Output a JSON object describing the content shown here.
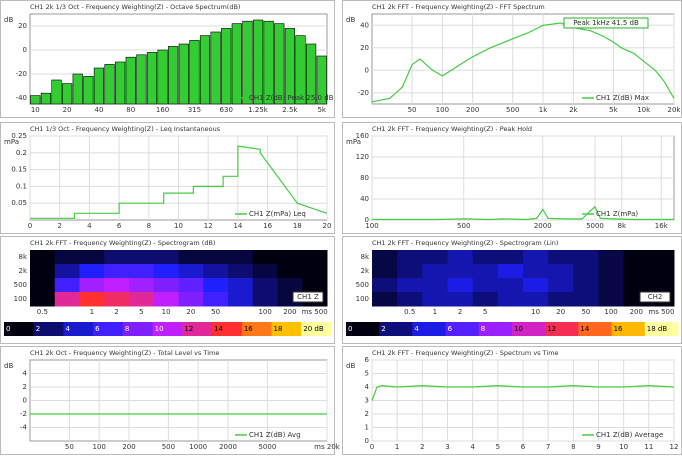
{
  "chart_data": [
    {
      "type": "bar",
      "title": "CH1 2k 1/3 Oct - Frequency Weighting(Z) - Octave Spectrum(dB)",
      "ylabel": "dB",
      "categories": [
        "10",
        null,
        null,
        "20",
        null,
        null,
        "40",
        null,
        null,
        "80",
        null,
        null,
        "160",
        null,
        null,
        "315",
        null,
        null,
        "630",
        null,
        null,
        "1.25k",
        null,
        null,
        "2.5k",
        null,
        null,
        "5k"
      ],
      "series": [
        {
          "name": "CH1 Z(dB) Peak 25.0 dB",
          "color": "#33cc33",
          "values": [
            -38,
            -36,
            -25,
            -28,
            -20,
            -22,
            -15,
            -12,
            -10,
            -6,
            -4,
            -2,
            0,
            3,
            5,
            8,
            12,
            15,
            18,
            22,
            24,
            25,
            24,
            22,
            18,
            12,
            5,
            -5
          ]
        }
      ],
      "ylim": [
        -45,
        30
      ],
      "yticks": [
        -40,
        -20,
        0,
        20
      ],
      "grid": true
    },
    {
      "type": "line",
      "title": "CH1 2k FFT - Frequency Weighting(Z) - FFT Spectrum",
      "ylabel": "dB",
      "annotation": "Peak 1kHz 41.5 dB",
      "log_x": true,
      "x": [
        20,
        30,
        40,
        50,
        60,
        80,
        100,
        150,
        200,
        300,
        500,
        700,
        1000,
        1500,
        2000,
        3000,
        4000,
        5000,
        6000,
        8000,
        10000,
        13000,
        16000,
        20000
      ],
      "series": [
        {
          "name": "CH1 Z(dB) Max",
          "color": "#44cc44",
          "values": [
            -28,
            -25,
            -15,
            5,
            10,
            0,
            -5,
            5,
            12,
            20,
            28,
            33,
            40,
            42,
            38,
            35,
            30,
            25,
            20,
            15,
            8,
            0,
            -10,
            -25
          ]
        }
      ],
      "xlim": [
        20,
        20000
      ],
      "xticks": [
        50,
        100,
        200,
        500,
        {
          "value": 1000,
          "label": "1k"
        },
        {
          "value": 2000,
          "label": "2k"
        },
        {
          "value": 5000,
          "label": "5k"
        },
        {
          "value": 10000,
          "label": "10k"
        },
        {
          "value": 20000,
          "label": "20k"
        }
      ],
      "ylim": [
        -30,
        50
      ],
      "yticks": [
        -20,
        0,
        20,
        40
      ],
      "grid": true
    },
    {
      "type": "line",
      "title": "CH1 1/3 Oct - Frequency Weighting(Z) - Leq Instantaneous",
      "ylabel": "mPa",
      "x": [
        0,
        3,
        3,
        6,
        6,
        9,
        9,
        11,
        11,
        13,
        13,
        14,
        14,
        15.5,
        15.5,
        18,
        20
      ],
      "series": [
        {
          "name": "CH1 Z(mPa) Leq",
          "color": "#44cc44",
          "values": [
            0.005,
            0.005,
            0.02,
            0.02,
            0.05,
            0.05,
            0.08,
            0.08,
            0.1,
            0.1,
            0.13,
            0.13,
            0.22,
            0.21,
            0.2,
            0.05,
            0.02
          ]
        }
      ],
      "xlim": [
        0,
        20
      ],
      "xticks": [
        0,
        2,
        4,
        6,
        8,
        10,
        12,
        14,
        16,
        18,
        20
      ],
      "ylim": [
        0,
        0.25
      ],
      "yticks": [
        0.05,
        0.1,
        0.15,
        0.2,
        0.25
      ],
      "grid": true
    },
    {
      "type": "line",
      "title": "CH1 2k FFT - Frequency Weighting(Z) - Peak Hold",
      "ylabel": "mPa",
      "log_x": true,
      "x": [
        100,
        300,
        500,
        800,
        1000,
        1500,
        1800,
        2000,
        2200,
        3000,
        4000,
        4500,
        5000,
        5500,
        7000,
        10000,
        20000
      ],
      "series": [
        {
          "name": "CH1 Z(mPa)",
          "color": "#44cc44",
          "values": [
            1,
            1,
            2,
            1,
            2,
            1,
            3,
            20,
            3,
            2,
            2,
            15,
            25,
            3,
            2,
            1,
            1
          ]
        }
      ],
      "xlim": [
        100,
        20000
      ],
      "xticks": [
        100,
        500,
        2000,
        5000,
        {
          "value": 8000,
          "label": "8k"
        },
        {
          "value": 16000,
          "label": "16k"
        }
      ],
      "ylim": [
        0,
        160
      ],
      "yticks": [
        0,
        40,
        80,
        120,
        160
      ],
      "grid": true
    },
    {
      "type": "heatmap",
      "title": "CH1 2k FFT - Frequency Weighting(Z) - Spectrogram (dB)",
      "annotation": "CH1 Z",
      "categories": [
        "0.5",
        null,
        "1",
        "2",
        "5",
        "10",
        "20",
        "50",
        null,
        "100",
        "200",
        "ms 500"
      ],
      "y_categories": [
        "8k",
        "2k",
        "500",
        "100"
      ],
      "values": [
        [
          0,
          1,
          1,
          2,
          2,
          2,
          1,
          1,
          1,
          0,
          0,
          0
        ],
        [
          0,
          3,
          5,
          6,
          6,
          5,
          4,
          3,
          2,
          1,
          0,
          0
        ],
        [
          0,
          6,
          9,
          10,
          9,
          8,
          7,
          5,
          4,
          2,
          1,
          0
        ],
        [
          0,
          12,
          14,
          13,
          12,
          10,
          8,
          6,
          4,
          2,
          1,
          0
        ]
      ],
      "clim": [
        0,
        20
      ],
      "cticks": [
        0,
        2,
        4,
        6,
        8,
        10,
        12,
        14,
        16,
        18,
        {
          "value": 20,
          "label": "20 dB"
        }
      ]
    },
    {
      "type": "heatmap",
      "title": "CH1 2k FFT - Frequency Weighting(Z) - Spectrogram (Lin)",
      "annotation": "CH2",
      "categories": [
        null,
        "0.5",
        "1",
        "2",
        "5",
        null,
        "10",
        "20",
        "50",
        "100",
        "200",
        "ms 500"
      ],
      "y_categories": [
        "8k",
        "2k",
        "500",
        "100"
      ],
      "values": [
        [
          1,
          2,
          2,
          3,
          2,
          2,
          3,
          2,
          2,
          1,
          0,
          0
        ],
        [
          1,
          2,
          3,
          3,
          3,
          4,
          3,
          3,
          2,
          1,
          0,
          0
        ],
        [
          2,
          3,
          3,
          4,
          3,
          3,
          4,
          3,
          2,
          1,
          0,
          0
        ],
        [
          1,
          2,
          3,
          3,
          2,
          3,
          3,
          2,
          2,
          1,
          0,
          0
        ]
      ],
      "clim": [
        0,
        18
      ],
      "cticks": [
        0,
        2,
        4,
        6,
        8,
        10,
        12,
        14,
        16,
        {
          "value": 18,
          "label": "18 dB"
        }
      ]
    },
    {
      "type": "line",
      "title": "CH1 2k Oct - Frequency Weighting(Z) - Total Level vs Time",
      "ylabel": "dB",
      "log_x": true,
      "x": [
        20,
        100,
        1000,
        5000,
        20000
      ],
      "series": [
        {
          "name": "CH1 Z(dB) Avg",
          "color": "#44cc44",
          "values": [
            -2,
            -2,
            -2,
            -2,
            -2
          ]
        }
      ],
      "xlim": [
        20,
        20000
      ],
      "xticks": [
        50,
        100,
        200,
        500,
        1000,
        2000,
        5000,
        {
          "value": 20000,
          "label": "ms 20k"
        }
      ],
      "ylim": [
        -6,
        6
      ],
      "yticks": [
        -4,
        -2,
        0,
        2,
        4
      ],
      "grid": true
    },
    {
      "type": "line",
      "title": "CH1 2k FFT - Frequency Weighting(Z) - Spectrum vs Time",
      "ylabel": "dB",
      "x": [
        0,
        0.2,
        0.4,
        1,
        2,
        3,
        4,
        5,
        6,
        7,
        8,
        9,
        10,
        11,
        12
      ],
      "series": [
        {
          "name": "CH1 Z(dB) Average",
          "color": "#44cc44",
          "values": [
            3,
            4,
            4.1,
            4,
            4.1,
            4,
            4,
            4.1,
            4,
            4,
            4.1,
            4,
            4,
            4.1,
            4
          ]
        }
      ],
      "xlim": [
        0,
        12
      ],
      "xticks": [
        0,
        1,
        2,
        3,
        4,
        5,
        6,
        7,
        8,
        9,
        10,
        11,
        12
      ],
      "ylim": [
        0,
        6
      ],
      "yticks": [
        0,
        1,
        2,
        3,
        4,
        5,
        6
      ],
      "grid": true
    }
  ]
}
